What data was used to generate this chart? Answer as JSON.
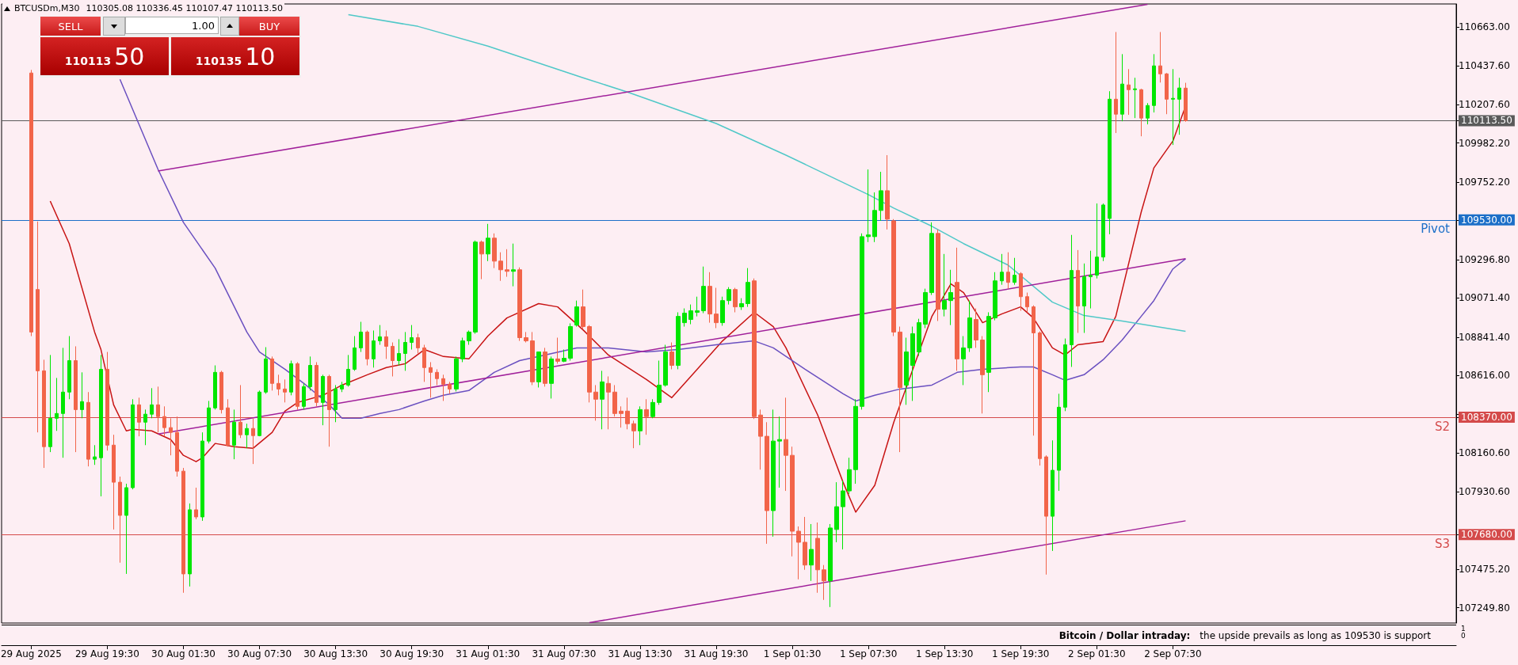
{
  "chart_data": {
    "type": "candlestick",
    "title": "BTCUSDm,M30",
    "x": [
      "2025-08-29T13:30",
      "2025-08-29T14:00",
      "2025-08-29T14:30",
      "2025-08-29T15:00",
      "2025-08-29T15:30",
      "2025-08-29T16:00",
      "2025-08-29T16:30",
      "2025-08-29T17:00",
      "2025-08-29T17:30",
      "2025-08-29T18:00",
      "2025-08-29T18:30",
      "2025-08-29T19:00",
      "2025-08-29T19:30",
      "2025-08-29T20:00",
      "2025-08-29T20:30",
      "2025-08-29T21:00",
      "2025-08-29T21:30",
      "2025-08-29T22:00",
      "2025-08-29T22:30",
      "2025-08-29T23:00",
      "2025-08-29T23:30",
      "2025-08-30T00:00",
      "2025-08-30T00:30",
      "2025-08-30T01:00",
      "2025-08-30T01:30",
      "2025-08-30T02:00",
      "2025-08-30T02:30",
      "2025-08-30T03:00",
      "2025-08-30T03:30",
      "2025-08-30T04:00",
      "2025-08-30T04:30",
      "2025-08-30T05:00",
      "2025-08-30T05:30",
      "2025-08-30T06:00",
      "2025-08-30T06:30",
      "2025-08-30T07:00",
      "2025-08-30T07:30",
      "2025-08-30T08:00",
      "2025-08-30T08:30",
      "2025-08-30T09:00",
      "2025-08-30T09:30",
      "2025-08-30T10:00",
      "2025-08-30T10:30",
      "2025-08-30T11:00",
      "2025-08-30T11:30",
      "2025-08-30T12:00",
      "2025-08-30T12:30",
      "2025-08-30T13:00",
      "2025-08-30T13:30",
      "2025-08-30T14:00",
      "2025-08-30T14:30",
      "2025-08-30T15:00",
      "2025-08-30T15:30",
      "2025-08-30T16:00",
      "2025-08-30T16:30",
      "2025-08-30T17:00",
      "2025-08-30T17:30",
      "2025-08-30T18:00",
      "2025-08-30T18:30",
      "2025-08-30T19:00",
      "2025-08-30T19:30",
      "2025-08-30T20:00",
      "2025-08-30T20:30",
      "2025-08-30T21:00",
      "2025-08-30T21:30",
      "2025-08-30T22:00",
      "2025-08-30T22:30",
      "2025-08-30T23:00",
      "2025-08-30T23:30",
      "2025-08-31T00:00",
      "2025-08-31T00:30",
      "2025-08-31T01:00",
      "2025-08-31T01:30",
      "2025-08-31T02:00",
      "2025-08-31T02:30",
      "2025-08-31T03:00",
      "2025-08-31T03:30",
      "2025-08-31T04:00",
      "2025-08-31T04:30",
      "2025-08-31T05:00",
      "2025-08-31T05:30",
      "2025-08-31T06:00",
      "2025-08-31T06:30",
      "2025-08-31T07:00",
      "2025-08-31T07:30",
      "2025-08-31T08:00",
      "2025-08-31T08:30",
      "2025-08-31T09:00",
      "2025-08-31T09:30",
      "2025-08-31T10:00",
      "2025-08-31T10:30",
      "2025-08-31T11:00",
      "2025-08-31T11:30",
      "2025-08-31T12:00",
      "2025-08-31T12:30",
      "2025-08-31T13:00",
      "2025-08-31T13:30",
      "2025-08-31T14:00",
      "2025-08-31T14:30",
      "2025-08-31T15:00",
      "2025-08-31T15:30",
      "2025-08-31T16:00",
      "2025-08-31T16:30",
      "2025-08-31T17:00",
      "2025-08-31T17:30",
      "2025-08-31T18:00",
      "2025-08-31T18:30",
      "2025-08-31T19:00",
      "2025-08-31T19:30",
      "2025-08-31T20:00",
      "2025-08-31T20:30",
      "2025-08-31T21:00",
      "2025-08-31T21:30",
      "2025-08-31T22:00",
      "2025-08-31T22:30",
      "2025-08-31T23:00",
      "2025-08-31T23:30",
      "2025-09-01T00:00",
      "2025-09-01T00:30",
      "2025-09-01T01:00",
      "2025-09-01T01:30",
      "2025-09-01T02:00",
      "2025-09-01T02:30",
      "2025-09-01T03:00",
      "2025-09-01T03:30",
      "2025-09-01T04:00",
      "2025-09-01T04:30",
      "2025-09-01T05:00",
      "2025-09-01T05:30",
      "2025-09-01T06:00",
      "2025-09-01T06:30",
      "2025-09-01T07:00",
      "2025-09-01T07:30",
      "2025-09-01T08:00",
      "2025-09-01T08:30",
      "2025-09-01T09:00",
      "2025-09-01T09:30",
      "2025-09-01T10:00",
      "2025-09-01T10:30",
      "2025-09-01T11:00",
      "2025-09-01T11:30",
      "2025-09-01T12:00",
      "2025-09-01T12:30",
      "2025-09-01T13:00",
      "2025-09-01T13:30",
      "2025-09-01T14:00",
      "2025-09-01T14:30",
      "2025-09-01T15:00",
      "2025-09-01T15:30",
      "2025-09-01T16:00",
      "2025-09-01T16:30",
      "2025-09-01T17:00",
      "2025-09-01T17:30",
      "2025-09-01T18:00",
      "2025-09-01T18:30",
      "2025-09-01T19:00",
      "2025-09-01T19:30",
      "2025-09-01T20:00",
      "2025-09-01T20:30",
      "2025-09-01T21:00",
      "2025-09-01T21:30",
      "2025-09-01T22:00",
      "2025-09-01T22:30",
      "2025-09-01T23:00",
      "2025-09-01T23:30",
      "2025-09-02T00:00",
      "2025-09-02T00:30",
      "2025-09-02T01:00",
      "2025-09-02T01:30",
      "2025-09-02T02:00",
      "2025-09-02T02:30",
      "2025-09-02T03:00",
      "2025-09-02T03:30",
      "2025-09-02T04:00",
      "2025-09-02T04:30",
      "2025-09-02T05:00",
      "2025-09-02T05:30",
      "2025-09-02T06:00",
      "2025-09-02T06:30",
      "2025-09-02T07:00",
      "2025-09-02T07:30",
      "2025-09-02T08:00",
      "2025-09-02T08:30"
    ],
    "ohlc": [
      [
        110394,
        110412,
        108847,
        108871
      ],
      [
        109121,
        109521,
        108281,
        108643
      ],
      [
        108643,
        108708,
        108072,
        108197
      ],
      [
        108197,
        108736,
        108165,
        108364
      ],
      [
        108364,
        108601,
        108290,
        108392
      ],
      [
        108392,
        108778,
        108132,
        108518
      ],
      [
        108518,
        108847,
        108476,
        108703
      ],
      [
        108703,
        108787,
        108165,
        108415
      ],
      [
        108415,
        108634,
        108364,
        108462
      ],
      [
        108457,
        108518,
        108081,
        108123
      ],
      [
        108123,
        108206,
        108090,
        108137
      ],
      [
        108132,
        108736,
        107905,
        108652
      ],
      [
        108652,
        108754,
        108174,
        108206
      ],
      [
        108206,
        108267,
        107710,
        107988
      ],
      [
        107988,
        108021,
        107515,
        107793
      ],
      [
        107793,
        107979,
        107449,
        107956
      ],
      [
        107956,
        108476,
        107946,
        108443
      ],
      [
        108443,
        108485,
        108258,
        108341
      ],
      [
        108341,
        108415,
        108206,
        108388
      ],
      [
        108388,
        108541,
        108364,
        108443
      ],
      [
        108443,
        108550,
        108281,
        108374
      ],
      [
        108374,
        108434,
        108258,
        108309
      ],
      [
        108309,
        108364,
        108146,
        108281
      ],
      [
        108281,
        108374,
        108021,
        108053
      ],
      [
        108053,
        108072,
        107338,
        107449
      ],
      [
        107449,
        107863,
        107375,
        107826
      ],
      [
        107826,
        107956,
        107770,
        107784
      ],
      [
        107784,
        108281,
        107761,
        108230
      ],
      [
        108230,
        108466,
        108216,
        108425
      ],
      [
        108425,
        108675,
        108415,
        108634
      ],
      [
        108634,
        108643,
        108392,
        108415
      ],
      [
        108425,
        108476,
        108197,
        108206
      ],
      [
        108206,
        108415,
        108123,
        108341
      ],
      [
        108341,
        108559,
        108248,
        108267
      ],
      [
        108267,
        108332,
        108188,
        108304
      ],
      [
        108304,
        108364,
        108095,
        108262
      ],
      [
        108262,
        108527,
        108258,
        108518
      ],
      [
        108518,
        108782,
        108508,
        108713
      ],
      [
        108713,
        108727,
        108527,
        108569
      ],
      [
        108569,
        108620,
        108499,
        108536
      ],
      [
        108536,
        108592,
        108457,
        108518
      ],
      [
        108518,
        108703,
        108499,
        108685
      ],
      [
        108685,
        108694,
        108415,
        108434
      ],
      [
        108434,
        108569,
        108415,
        108550
      ],
      [
        108550,
        108727,
        108527,
        108675
      ],
      [
        108675,
        108694,
        108434,
        108457
      ],
      [
        108457,
        108620,
        108323,
        108610
      ],
      [
        108610,
        108620,
        108197,
        108415
      ],
      [
        108415,
        108559,
        108341,
        108536
      ],
      [
        108536,
        108578,
        108518,
        108559
      ],
      [
        108559,
        108736,
        108550,
        108652
      ],
      [
        108652,
        108847,
        108643,
        108778
      ],
      [
        108778,
        108931,
        108754,
        108871
      ],
      [
        108871,
        108880,
        108675,
        108713
      ],
      [
        108713,
        108880,
        108662,
        108819
      ],
      [
        108819,
        108912,
        108796,
        108843
      ],
      [
        108843,
        108880,
        108713,
        108787
      ],
      [
        108787,
        108810,
        108610,
        108703
      ],
      [
        108703,
        108829,
        108675,
        108745
      ],
      [
        108745,
        108871,
        108643,
        108810
      ],
      [
        108810,
        108912,
        108768,
        108838
      ],
      [
        108838,
        108861,
        108745,
        108778
      ],
      [
        108778,
        108796,
        108578,
        108662
      ],
      [
        108662,
        108694,
        108485,
        108634
      ],
      [
        108634,
        108652,
        108559,
        108597
      ],
      [
        108597,
        108620,
        108466,
        108564
      ],
      [
        108564,
        108578,
        108508,
        108536
      ],
      [
        108536,
        108727,
        108522,
        108713
      ],
      [
        108713,
        108838,
        108694,
        108819
      ],
      [
        108819,
        108880,
        108796,
        108871
      ],
      [
        108871,
        109409,
        108861,
        109400
      ],
      [
        109400,
        109409,
        109182,
        109330
      ],
      [
        109330,
        109507,
        109288,
        109423
      ],
      [
        109423,
        109451,
        109247,
        109288
      ],
      [
        109288,
        109340,
        109172,
        109237
      ],
      [
        109237,
        109358,
        109196,
        109228
      ],
      [
        109228,
        109391,
        109140,
        109237
      ],
      [
        109237,
        109251,
        108819,
        108838
      ],
      [
        108838,
        108871,
        108810,
        108819
      ],
      [
        108819,
        108871,
        108559,
        108578
      ],
      [
        108578,
        108754,
        108545,
        108754
      ],
      [
        108754,
        108778,
        108550,
        108569
      ],
      [
        108569,
        108727,
        108480,
        108713
      ],
      [
        108713,
        108838,
        108685,
        108699
      ],
      [
        108699,
        108768,
        108694,
        108717
      ],
      [
        108717,
        108922,
        108703,
        108903
      ],
      [
        108912,
        109056,
        108903,
        109019
      ],
      [
        109019,
        109121,
        108889,
        108903
      ],
      [
        108903,
        108912,
        108457,
        108518
      ],
      [
        108518,
        108559,
        108350,
        108476
      ],
      [
        108476,
        108643,
        108299,
        108578
      ],
      [
        108569,
        108610,
        108299,
        108518
      ],
      [
        108518,
        108559,
        108374,
        108392
      ],
      [
        108406,
        108434,
        108309,
        108392
      ],
      [
        108406,
        108485,
        108299,
        108332
      ],
      [
        108332,
        108350,
        108188,
        108290
      ],
      [
        108290,
        108434,
        108206,
        108415
      ],
      [
        108415,
        108476,
        108267,
        108374
      ],
      [
        108374,
        108476,
        108364,
        108457
      ],
      [
        108457,
        108703,
        108443,
        108559
      ],
      [
        108559,
        108796,
        108550,
        108754
      ],
      [
        108754,
        108810,
        108652,
        108675
      ],
      [
        108675,
        108987,
        108652,
        108963
      ],
      [
        108926,
        109010,
        108903,
        108982
      ],
      [
        108945,
        109033,
        108917,
        108996
      ],
      [
        108987,
        109079,
        108963,
        108996
      ],
      [
        108996,
        109256,
        108982,
        109140
      ],
      [
        109140,
        109223,
        108926,
        108977
      ],
      [
        108977,
        109131,
        108894,
        108926
      ],
      [
        108926,
        109079,
        108908,
        109056
      ],
      [
        109056,
        109135,
        109033,
        109121
      ],
      [
        109121,
        109131,
        108987,
        109019
      ],
      [
        109019,
        109070,
        109001,
        109038
      ],
      [
        109038,
        109247,
        109019,
        109163
      ],
      [
        109172,
        109186,
        108360,
        108374
      ],
      [
        108383,
        108415,
        108062,
        108258
      ],
      [
        108258,
        108341,
        107626,
        107821
      ],
      [
        107821,
        108415,
        107668,
        108230
      ],
      [
        108230,
        108374,
        107956,
        108239
      ],
      [
        108239,
        108485,
        107937,
        108146
      ],
      [
        108146,
        108197,
        107552,
        107700
      ],
      [
        107700,
        107728,
        107417,
        107635
      ],
      [
        107635,
        107784,
        107473,
        107501
      ],
      [
        107501,
        107742,
        107408,
        107593
      ],
      [
        107658,
        107751,
        107338,
        107473
      ],
      [
        107473,
        107501,
        107296,
        107408
      ],
      [
        107408,
        107742,
        107254,
        107719
      ],
      [
        107710,
        107988,
        107635,
        107844
      ],
      [
        107844,
        107997,
        107593,
        107937
      ],
      [
        107937,
        108132,
        107919,
        108062
      ],
      [
        108062,
        108476,
        107979,
        108434
      ],
      [
        108434,
        109451,
        108415,
        109432
      ],
      [
        109432,
        109827,
        109400,
        109442
      ],
      [
        109432,
        109692,
        109400,
        109586
      ],
      [
        109586,
        109813,
        109525,
        109702
      ],
      [
        109702,
        109911,
        109474,
        109535
      ],
      [
        109525,
        109535,
        108847,
        108871
      ],
      [
        108871,
        108903,
        108165,
        108545
      ],
      [
        108559,
        108838,
        108443,
        108754
      ],
      [
        108675,
        108903,
        108466,
        108861
      ],
      [
        108754,
        108949,
        108731,
        108926
      ],
      [
        108917,
        109126,
        108894,
        109103
      ],
      [
        109103,
        109516,
        109089,
        109451
      ],
      [
        109451,
        109474,
        108936,
        109005
      ],
      [
        109005,
        109330,
        108963,
        109056
      ],
      [
        109056,
        109237,
        108912,
        109103
      ],
      [
        109163,
        109367,
        108643,
        108713
      ],
      [
        108713,
        108847,
        108559,
        108778
      ],
      [
        108778,
        109056,
        108754,
        108954
      ],
      [
        108945,
        109010,
        108778,
        108824
      ],
      [
        108824,
        108847,
        108392,
        108620
      ],
      [
        108634,
        108987,
        108518,
        108963
      ],
      [
        108954,
        109223,
        108940,
        109172
      ],
      [
        109172,
        109330,
        109149,
        109223
      ],
      [
        109223,
        109340,
        109126,
        109163
      ],
      [
        109163,
        109307,
        109149,
        109205
      ],
      [
        109214,
        109223,
        108996,
        109079
      ],
      [
        109079,
        109103,
        108987,
        109019
      ],
      [
        109019,
        109028,
        108262,
        108866
      ],
      [
        108866,
        108875,
        108086,
        108127
      ],
      [
        108137,
        108146,
        107445,
        107788
      ],
      [
        107788,
        108234,
        107584,
        108058
      ],
      [
        108058,
        108508,
        107937,
        108429
      ],
      [
        108429,
        108833,
        108406,
        108796
      ],
      [
        108796,
        109442,
        108666,
        109233
      ],
      [
        109233,
        109353,
        108866,
        109024
      ],
      [
        109024,
        109274,
        108866,
        109196
      ],
      [
        109196,
        109349,
        109010,
        109205
      ],
      [
        109205,
        109627,
        109186,
        109312
      ],
      [
        109312,
        109627,
        109288,
        109618
      ],
      [
        109539,
        110287,
        109446,
        110240
      ],
      [
        110240,
        110635,
        110041,
        110152
      ],
      [
        110152,
        110505,
        110110,
        110329
      ],
      [
        110324,
        110417,
        110148,
        110296
      ],
      [
        110296,
        110366,
        110129,
        110301
      ],
      [
        110296,
        110301,
        110022,
        110129
      ],
      [
        110129,
        110217,
        110092,
        110203
      ],
      [
        110203,
        110505,
        110162,
        110436
      ],
      [
        110436,
        110635,
        110338,
        110389
      ],
      [
        110389,
        110394,
        110152,
        110240
      ],
      [
        110240,
        110417,
        109971,
        110245
      ],
      [
        110240,
        110366,
        110031,
        110306
      ],
      [
        110305.08,
        110336.45,
        110107.47,
        110113.5
      ]
    ],
    "colors": [
      "#f26449",
      "#f26449",
      "#f26449",
      "#00e600",
      "#00e600",
      "#00e600",
      "#00e600",
      "#f26449",
      "#00e600",
      "#f26449",
      "#00e600",
      "#00e600",
      "#f26449",
      "#f26449",
      "#f26449",
      "#00e600",
      "#00e600",
      "#f26449",
      "#00e600",
      "#00e600",
      "#f26449",
      "#f26449",
      "#f26449",
      "#f26449",
      "#f26449",
      "#00e600",
      "#f26449",
      "#00e600",
      "#00e600",
      "#00e600",
      "#f26449",
      "#f26449",
      "#00e600",
      "#f26449",
      "#00e600",
      "#f26449",
      "#00e600",
      "#00e600",
      "#f26449",
      "#f26449",
      "#f26449",
      "#00e600",
      "#f26449",
      "#00e600",
      "#00e600",
      "#f26449",
      "#00e600",
      "#f26449",
      "#00e600",
      "#00e600",
      "#00e600",
      "#00e600",
      "#00e600",
      "#f26449",
      "#00e600",
      "#00e600",
      "#f26449",
      "#f26449",
      "#00e600",
      "#00e600",
      "#00e600",
      "#f26449",
      "#f26449",
      "#f26449",
      "#f26449",
      "#f26449",
      "#f26449",
      "#00e600",
      "#00e600",
      "#00e600",
      "#00e600",
      "#f26449",
      "#00e600",
      "#f26449",
      "#f26449",
      "#f26449",
      "#00e600",
      "#f26449",
      "#f26449",
      "#f26449",
      "#00e600",
      "#f26449",
      "#00e600",
      "#f26449",
      "#00e600",
      "#00e600",
      "#00e600",
      "#f26449",
      "#f26449",
      "#f26449",
      "#00e600",
      "#f26449",
      "#f26449",
      "#f26449",
      "#f26449",
      "#f26449",
      "#00e600",
      "#f26449",
      "#00e600",
      "#00e600",
      "#00e600",
      "#f26449",
      "#00e600",
      "#00e600",
      "#00e600",
      "#00e600",
      "#00e600",
      "#f26449",
      "#f26449",
      "#00e600",
      "#00e600",
      "#f26449",
      "#00e600",
      "#00e600",
      "#f26449",
      "#f26449",
      "#f26449",
      "#00e600",
      "#00e600",
      "#f26449",
      "#f26449",
      "#f26449",
      "#f26449",
      "#00e600",
      "#f26449",
      "#f26449",
      "#00e600",
      "#00e600",
      "#00e600",
      "#00e600",
      "#00e600",
      "#00e600",
      "#00e600",
      "#00e600",
      "#00e600",
      "#f26449",
      "#f26449",
      "#f26449",
      "#00e600",
      "#00e600",
      "#00e600",
      "#00e600",
      "#00e600",
      "#f26449",
      "#00e600",
      "#00e600",
      "#f26449",
      "#00e600",
      "#00e600",
      "#f26449",
      "#f26449",
      "#00e600",
      "#00e600",
      "#00e600",
      "#f26449",
      "#00e600",
      "#f26449",
      "#f26449",
      "#f26449",
      "#f26449",
      "#f26449",
      "#00e600",
      "#00e600",
      "#00e600",
      "#00e600",
      "#f26449",
      "#00e600",
      "#00e600",
      "#00e600",
      "#00e600",
      "#00e600",
      "#f26449",
      "#00e600",
      "#f26449",
      "#00e600",
      "#f26449",
      "#00e600",
      "#00e600",
      "#f26449",
      "#f26449",
      "#00e600",
      "#00e600",
      "#f26449"
    ],
    "series": [
      {
        "type": "line",
        "color": "#c81414",
        "x": [
          "2025-08-29T15:00",
          "2025-08-29T16:30",
          "2025-08-29T18:30",
          "2025-08-29T19:00",
          "2025-08-29T20:00",
          "2025-08-29T21:00",
          "2025-08-29T21:30",
          "2025-08-29T23:00",
          "2025-08-30T00:30",
          "2025-08-30T01:30",
          "2025-08-30T02:30",
          "2025-08-30T03:00",
          "2025-08-30T04:00",
          "2025-08-30T05:30",
          "2025-08-30T07:00",
          "2025-08-30T08:30",
          "2025-08-30T09:30",
          "2025-08-30T10:30",
          "2025-08-30T12:30",
          "2025-08-30T14:00",
          "2025-08-30T16:00",
          "2025-08-30T17:30",
          "2025-08-30T19:00",
          "2025-08-30T20:30",
          "2025-08-30T22:00",
          "2025-08-31T00:00",
          "2025-08-31T01:30",
          "2025-08-31T03:00",
          "2025-08-31T05:30",
          "2025-08-31T07:00",
          "2025-08-31T09:00",
          "2025-08-31T11:00",
          "2025-08-31T14:00",
          "2025-08-31T16:00",
          "2025-08-31T18:00",
          "2025-08-31T20:00",
          "2025-08-31T22:30",
          "2025-09-01T00:00",
          "2025-09-01T01:00",
          "2025-09-01T03:30",
          "2025-09-01T05:30",
          "2025-09-01T06:30",
          "2025-09-01T08:00",
          "2025-09-01T09:30",
          "2025-09-01T11:00",
          "2025-09-01T12:30",
          "2025-09-01T14:00",
          "2025-09-01T15:00",
          "2025-09-01T16:30",
          "2025-09-01T18:00",
          "2025-09-01T19:30",
          "2025-09-01T20:30",
          "2025-09-01T22:00",
          "2025-09-01T23:00",
          "2025-09-02T00:00",
          "2025-09-02T02:00",
          "2025-09-02T03:00",
          "2025-09-02T05:00",
          "2025-09-02T06:00",
          "2025-09-02T07:30",
          "2025-09-02T08:30"
        ],
        "values": [
          109641,
          109391,
          108871,
          108768,
          108443,
          108290,
          108299,
          108290,
          108239,
          108146,
          108109,
          108132,
          108216,
          108197,
          108188,
          108281,
          108406,
          108457,
          108499,
          108559,
          108620,
          108662,
          108685,
          108768,
          108727,
          108713,
          108847,
          108954,
          109038,
          109019,
          108884,
          108736,
          108592,
          108485,
          108652,
          108819,
          108987,
          108903,
          108778,
          108383,
          107988,
          107812,
          107970,
          108341,
          108652,
          108963,
          109154,
          109103,
          108926,
          108977,
          109019,
          108954,
          108778,
          108736,
          108796,
          108815,
          108963,
          109576,
          109836,
          109994,
          110199
        ]
      },
      {
        "type": "line",
        "color": "#6a50c0",
        "x": [
          "2025-08-29T20:30",
          "2025-08-29T23:30",
          "2025-08-30T01:30",
          "2025-08-30T04:00",
          "2025-08-30T06:30",
          "2025-08-30T07:30",
          "2025-08-30T09:30",
          "2025-08-30T11:00",
          "2025-08-30T13:00",
          "2025-08-30T14:00",
          "2025-08-30T15:30",
          "2025-08-30T17:00",
          "2025-08-30T18:30",
          "2025-08-30T20:30",
          "2025-08-30T22:00",
          "2025-08-31T00:00",
          "2025-08-31T02:00",
          "2025-08-31T04:00",
          "2025-08-31T05:30",
          "2025-08-31T08:30",
          "2025-08-31T11:00",
          "2025-08-31T14:00",
          "2025-08-31T16:30",
          "2025-08-31T19:30",
          "2025-08-31T22:30",
          "2025-09-01T00:00",
          "2025-09-01T02:30",
          "2025-09-01T05:30",
          "2025-09-01T06:30",
          "2025-09-01T08:00",
          "2025-09-01T10:00",
          "2025-09-01T12:30",
          "2025-09-01T14:30",
          "2025-09-01T16:30",
          "2025-09-01T19:30",
          "2025-09-01T20:30",
          "2025-09-01T22:00",
          "2025-09-01T23:00",
          "2025-09-02T00:30",
          "2025-09-02T02:00",
          "2025-09-02T03:30",
          "2025-09-02T05:00",
          "2025-09-02T06:00",
          "2025-09-02T07:30",
          "2025-09-02T08:30"
        ],
        "values": [
          110357,
          109827,
          109516,
          109247,
          108871,
          108754,
          108652,
          108569,
          108443,
          108364,
          108364,
          108392,
          108415,
          108466,
          108499,
          108527,
          108634,
          108703,
          108727,
          108778,
          108778,
          108754,
          108768,
          108796,
          108819,
          108778,
          108652,
          108508,
          108466,
          108499,
          108536,
          108559,
          108634,
          108652,
          108666,
          108666,
          108620,
          108587,
          108620,
          108708,
          108824,
          108963,
          109056,
          109242,
          109302
        ]
      },
      {
        "type": "line",
        "color": "#50c8c8",
        "x": [
          "2025-08-30T14:30",
          "2025-08-30T20:00",
          "2025-08-31T01:30",
          "2025-08-31T09:00",
          "2025-08-31T12:30",
          "2025-08-31T19:30",
          "2025-09-01T01:00",
          "2025-09-01T07:30",
          "2025-09-01T09:30",
          "2025-09-01T12:30",
          "2025-09-01T15:00",
          "2025-09-01T18:30",
          "2025-09-01T22:00",
          "2025-09-02T00:30",
          "2025-09-02T03:30",
          "2025-09-02T08:30"
        ],
        "values": [
          110737,
          110668,
          110552,
          110366,
          110282,
          110097,
          109911,
          109679,
          109600,
          109493,
          109391,
          109265,
          109047,
          108968,
          108936,
          108875
        ]
      },
      {
        "type": "line",
        "color": "#a0209a",
        "x": [
          "2025-08-29T23:30",
          "2025-09-02T05:30"
        ],
        "values": [
          109818,
          110798
        ]
      },
      {
        "type": "line",
        "color": "#a0209a",
        "x": [
          "2025-08-29T23:30",
          "2025-09-02T08:30"
        ],
        "values": [
          108271,
          109302
        ]
      },
      {
        "type": "line",
        "color": "#a0209a",
        "x": [
          "2025-08-31T09:30",
          "2025-09-02T08:30"
        ],
        "values": [
          107162,
          107761
        ]
      }
    ],
    "ref_lines": [
      {
        "axis": "y",
        "value": 109530,
        "label": "Pivot",
        "color": "#1c6fc8"
      },
      {
        "axis": "y",
        "value": 108370,
        "label": "S2",
        "color": "#d44a4a"
      },
      {
        "axis": "y",
        "value": 107680,
        "label": "S3",
        "color": "#d44a4a"
      },
      {
        "axis": "y",
        "value": 110113.5,
        "color": "#5a5a5a"
      }
    ],
    "xlim": [
      "2025-08-29T11:10",
      "2025-09-03T05:50"
    ],
    "xticks": [
      {
        "value": "2025-08-29T13:30",
        "label": "29 Aug 2025"
      },
      {
        "value": "2025-08-29T19:30",
        "label": "29 Aug 19:30"
      },
      {
        "value": "2025-08-30T01:30",
        "label": "30 Aug 01:30"
      },
      {
        "value": "2025-08-30T07:30",
        "label": "30 Aug 07:30"
      },
      {
        "value": "2025-08-30T13:30",
        "label": "30 Aug 13:30"
      },
      {
        "value": "2025-08-30T19:30",
        "label": "30 Aug 19:30"
      },
      {
        "value": "2025-08-31T01:30",
        "label": "31 Aug 01:30"
      },
      {
        "value": "2025-08-31T07:30",
        "label": "31 Aug 07:30"
      },
      {
        "value": "2025-08-31T13:30",
        "label": "31 Aug 13:30"
      },
      {
        "value": "2025-08-31T19:30",
        "label": "31 Aug 19:30"
      },
      {
        "value": "2025-09-01T01:30",
        "label": "1 Sep 01:30"
      },
      {
        "value": "2025-09-01T07:30",
        "label": "1 Sep 07:30"
      },
      {
        "value": "2025-09-01T13:30",
        "label": "1 Sep 13:30"
      },
      {
        "value": "2025-09-01T19:30",
        "label": "1 Sep 19:30"
      },
      {
        "value": "2025-09-02T01:30",
        "label": "2 Sep 01:30"
      },
      {
        "value": "2025-09-02T07:30",
        "label": "2 Sep 07:30"
      }
    ],
    "ylim": [
      107160,
      110800
    ],
    "yticks": [
      {
        "value": 110663,
        "label": "110663.00"
      },
      {
        "value": 110437.6,
        "label": "110437.60"
      },
      {
        "value": 110207.6,
        "label": "110207.60"
      },
      {
        "value": 109982.2,
        "label": "109982.20"
      },
      {
        "value": 109752.2,
        "label": "109752.20"
      },
      {
        "value": 109526.8,
        "label": null
      },
      {
        "value": 109296.8,
        "label": "109296.80"
      },
      {
        "value": 109071.4,
        "label": "109071.40"
      },
      {
        "value": 108841.4,
        "label": "108841.40"
      },
      {
        "value": 108616,
        "label": "108616.00"
      },
      {
        "value": 108386,
        "label": null
      },
      {
        "value": 108160.6,
        "label": "108160.60"
      },
      {
        "value": 107930.6,
        "label": "107930.60"
      },
      {
        "value": 107475.2,
        "label": "107475.20"
      },
      {
        "value": 107249.8,
        "label": "107249.80"
      },
      {
        "value": 110113.5,
        "label": "110113.50"
      },
      {
        "value": 109530,
        "label": "109530.00"
      },
      {
        "value": 108370,
        "label": "108370.00"
      },
      {
        "value": 107680,
        "label": "107680.00"
      }
    ],
    "grid": false,
    "annotations": [
      "110305.08 110336.45 110107.47 110113.50",
      "SELL",
      "1.00",
      "BUY",
      "110113",
      "50",
      "110135",
      "10",
      "Bitcoin / Dollar intraday:",
      "the upside prevails as long as 109530 is support",
      "1",
      "0"
    ]
  }
}
